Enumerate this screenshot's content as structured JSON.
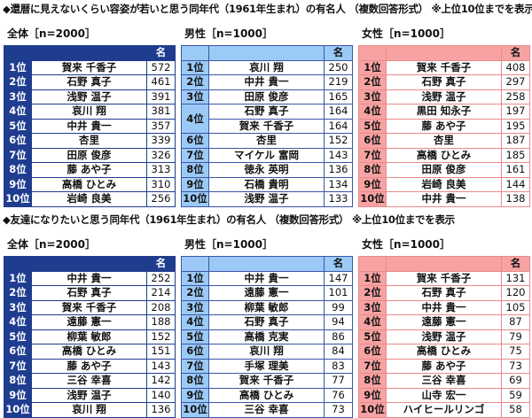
{
  "sections": [
    {
      "title": "◆還暦に見えないくらい容姿が若いと思う同年代（1961年生まれ）の有名人 （複数回答形式） ※上位10位までを表示",
      "groups": [
        {
          "label": "全体［n=2000］",
          "unit": "名",
          "theme": "all",
          "rows": [
            {
              "rank": "1位",
              "name": "賀来 千香子",
              "value": "572"
            },
            {
              "rank": "2位",
              "name": "石野 真子",
              "value": "461"
            },
            {
              "rank": "3位",
              "name": "浅野 温子",
              "value": "391"
            },
            {
              "rank": "4位",
              "name": "哀川 翔",
              "value": "381"
            },
            {
              "rank": "5位",
              "name": "中井 貴一",
              "value": "357"
            },
            {
              "rank": "6位",
              "name": "杏里",
              "value": "339"
            },
            {
              "rank": "7位",
              "name": "田原 俊彦",
              "value": "326"
            },
            {
              "rank": "8位",
              "name": "藤 あや子",
              "value": "313"
            },
            {
              "rank": "9位",
              "name": "高橋 ひとみ",
              "value": "310"
            },
            {
              "rank": "10位",
              "name": "岩崎 良美",
              "value": "256"
            }
          ]
        },
        {
          "label": "男性［n=1000］",
          "unit": "名",
          "theme": "male",
          "rows": [
            {
              "rank": "1位",
              "name": "哀川 翔",
              "value": "250"
            },
            {
              "rank": "2位",
              "name": "中井 貴一",
              "value": "219"
            },
            {
              "rank": "3位",
              "name": "田原 俊彦",
              "value": "165"
            },
            {
              "rank": "4位",
              "name": "石野 真子",
              "value": "164",
              "span": 2
            },
            {
              "rank": null,
              "name": "賀来 千香子",
              "value": "164"
            },
            {
              "rank": "6位",
              "name": "杏里",
              "value": "152"
            },
            {
              "rank": "7位",
              "name": "マイケル 富岡",
              "value": "143"
            },
            {
              "rank": "8位",
              "name": "徳永 英明",
              "value": "136"
            },
            {
              "rank": "9位",
              "name": "石橋 貴明",
              "value": "134"
            },
            {
              "rank": "10位",
              "name": "浅野 温子",
              "value": "133"
            }
          ]
        },
        {
          "label": "女性［n=1000］",
          "unit": "名",
          "theme": "female",
          "rows": [
            {
              "rank": "1位",
              "name": "賀来 千香子",
              "value": "408"
            },
            {
              "rank": "2位",
              "name": "石野 真子",
              "value": "297"
            },
            {
              "rank": "3位",
              "name": "浅野 温子",
              "value": "258"
            },
            {
              "rank": "4位",
              "name": "黒田 知永子",
              "value": "197"
            },
            {
              "rank": "5位",
              "name": "藤 あや子",
              "value": "195"
            },
            {
              "rank": "6位",
              "name": "杏里",
              "value": "187"
            },
            {
              "rank": "7位",
              "name": "高橋 ひとみ",
              "value": "185"
            },
            {
              "rank": "8位",
              "name": "田原 俊彦",
              "value": "161"
            },
            {
              "rank": "9位",
              "name": "岩崎 良美",
              "value": "144"
            },
            {
              "rank": "10位",
              "name": "中井 貴一",
              "value": "138"
            }
          ]
        }
      ]
    },
    {
      "title": "◆友達になりたいと思う同年代（1961年生まれ）の有名人 （複数回答形式） ※上位10位までを表示",
      "groups": [
        {
          "label": "全体［n=2000］",
          "unit": "名",
          "theme": "all",
          "rows": [
            {
              "rank": "1位",
              "name": "中井 貴一",
              "value": "252"
            },
            {
              "rank": "2位",
              "name": "石野 真子",
              "value": "214"
            },
            {
              "rank": "3位",
              "name": "賀来 千香子",
              "value": "208"
            },
            {
              "rank": "4位",
              "name": "遠藤 憲一",
              "value": "188"
            },
            {
              "rank": "5位",
              "name": "柳葉 敏郎",
              "value": "152"
            },
            {
              "rank": "6位",
              "name": "高橋 ひとみ",
              "value": "151"
            },
            {
              "rank": "7位",
              "name": "藤 あや子",
              "value": "143"
            },
            {
              "rank": "8位",
              "name": "三谷 幸喜",
              "value": "142"
            },
            {
              "rank": "9位",
              "name": "浅野 温子",
              "value": "140"
            },
            {
              "rank": "10位",
              "name": "哀川 翔",
              "value": "136"
            }
          ]
        },
        {
          "label": "男性［n=1000］",
          "unit": "名",
          "theme": "male",
          "rows": [
            {
              "rank": "1位",
              "name": "中井 貴一",
              "value": "147"
            },
            {
              "rank": "2位",
              "name": "遠藤 憲一",
              "value": "101"
            },
            {
              "rank": "3位",
              "name": "柳葉 敏郎",
              "value": "99"
            },
            {
              "rank": "4位",
              "name": "石野 真子",
              "value": "94"
            },
            {
              "rank": "5位",
              "name": "高橋 克実",
              "value": "86"
            },
            {
              "rank": "6位",
              "name": "哀川 翔",
              "value": "84"
            },
            {
              "rank": "7位",
              "name": "手塚 理美",
              "value": "83"
            },
            {
              "rank": "8位",
              "name": "賀来 千香子",
              "value": "77"
            },
            {
              "rank": "9位",
              "name": "高橋 ひとみ",
              "value": "76"
            },
            {
              "rank": "10位",
              "name": "三谷 幸喜",
              "value": "73"
            }
          ]
        },
        {
          "label": "女性［n=1000］",
          "unit": "名",
          "theme": "female",
          "rows": [
            {
              "rank": "1位",
              "name": "賀来 千香子",
              "value": "131"
            },
            {
              "rank": "2位",
              "name": "石野 真子",
              "value": "120"
            },
            {
              "rank": "3位",
              "name": "中井 貴一",
              "value": "105"
            },
            {
              "rank": "4位",
              "name": "遠藤 憲一",
              "value": "87"
            },
            {
              "rank": "5位",
              "name": "浅野 温子",
              "value": "79"
            },
            {
              "rank": "6位",
              "name": "高橋 ひとみ",
              "value": "75"
            },
            {
              "rank": "7位",
              "name": "藤 あや子",
              "value": "73"
            },
            {
              "rank": "8位",
              "name": "三谷 幸喜",
              "value": "69"
            },
            {
              "rank": "9位",
              "name": "山寺 宏一",
              "value": "59"
            },
            {
              "rank": "10位",
              "name": "ハイヒールリンゴ",
              "value": "58"
            }
          ]
        }
      ]
    }
  ]
}
